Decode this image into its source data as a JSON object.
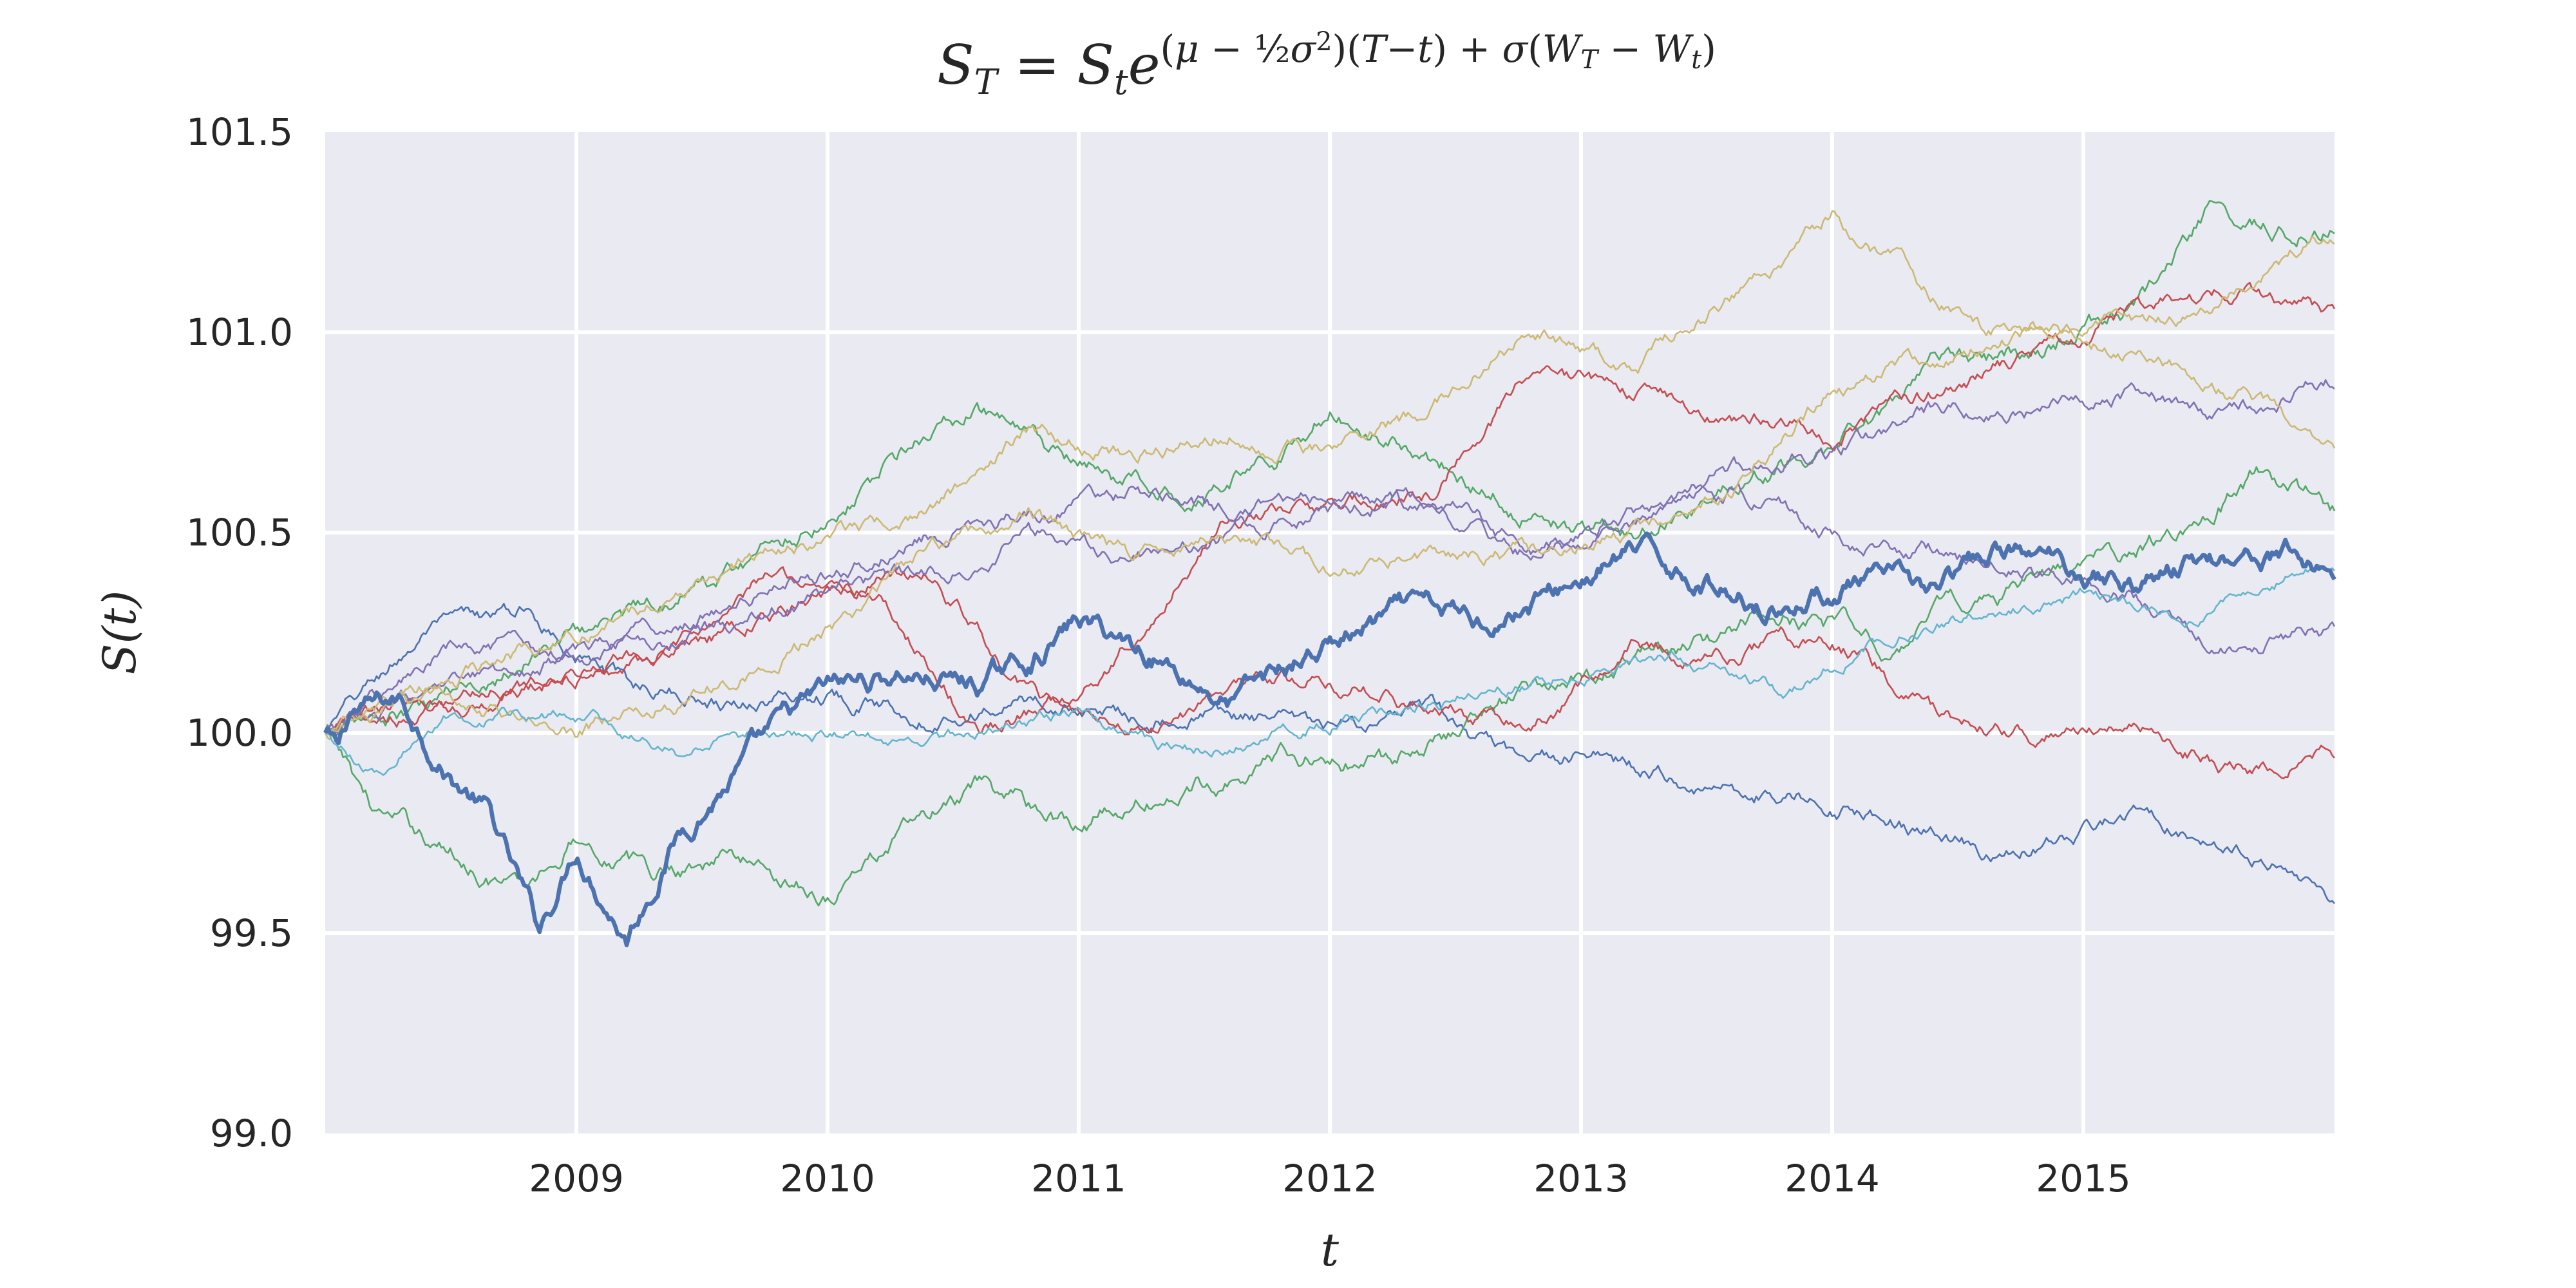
{
  "chart_data": {
    "type": "line",
    "title": "S_T = S_t e^{(μ − ½σ²)(T−t) + σ(W_T − W_t)}",
    "xlabel": "t",
    "ylabel": "S(t)",
    "x_range": [
      "2008-01-01",
      "2016-01-01"
    ],
    "xlim": [
      2008.0,
      2016.0
    ],
    "x_ticks": [
      "2009",
      "2010",
      "2011",
      "2012",
      "2013",
      "2014",
      "2015"
    ],
    "x_tick_values": [
      2009,
      2010,
      2011,
      2012,
      2013,
      2014,
      2015
    ],
    "ylim": [
      99.0,
      101.5
    ],
    "y_ticks": [
      "99.0",
      "99.5",
      "100.0",
      "100.5",
      "101.0",
      "101.5"
    ],
    "y_tick_values": [
      99.0,
      99.5,
      100.0,
      100.5,
      101.0,
      101.5
    ],
    "grid": true,
    "background": "#eaeaf2",
    "grid_color": "#ffffff",
    "highlight_series": 0,
    "series": [
      {
        "color": "#4c72b0",
        "width": "bold",
        "volatility": 0.035,
        "points": [
          [
            2008.0,
            100.0
          ],
          [
            2008.05,
            99.95
          ],
          [
            2008.1,
            100.05
          ],
          [
            2008.3,
            100.08
          ],
          [
            2008.5,
            99.9
          ],
          [
            2008.65,
            99.8
          ],
          [
            2008.85,
            99.5
          ],
          [
            2009.0,
            99.72
          ],
          [
            2009.2,
            99.5
          ],
          [
            2009.4,
            99.75
          ],
          [
            2009.6,
            99.88
          ],
          [
            2009.8,
            100.0
          ],
          [
            2010.0,
            100.1
          ],
          [
            2010.3,
            100.15
          ],
          [
            2010.6,
            100.12
          ],
          [
            2010.8,
            100.18
          ],
          [
            2011.0,
            100.28
          ],
          [
            2011.3,
            100.2
          ],
          [
            2011.6,
            100.08
          ],
          [
            2011.8,
            100.15
          ],
          [
            2012.0,
            100.22
          ],
          [
            2012.3,
            100.3
          ],
          [
            2012.6,
            100.28
          ],
          [
            2012.9,
            100.35
          ],
          [
            2013.2,
            100.45
          ],
          [
            2013.5,
            100.38
          ],
          [
            2013.8,
            100.32
          ],
          [
            2014.1,
            100.38
          ],
          [
            2014.4,
            100.35
          ],
          [
            2014.7,
            100.45
          ],
          [
            2014.9,
            100.42
          ],
          [
            2015.2,
            100.38
          ],
          [
            2015.5,
            100.44
          ],
          [
            2015.8,
            100.45
          ],
          [
            2016.0,
            100.4
          ]
        ]
      },
      {
        "color": "#4c72b0",
        "width": "thin",
        "volatility": 0.025,
        "points": [
          [
            2008.0,
            100.0
          ],
          [
            2008.4,
            100.25
          ],
          [
            2008.8,
            100.3
          ],
          [
            2009.2,
            100.12
          ],
          [
            2009.6,
            100.08
          ],
          [
            2010.0,
            100.1
          ],
          [
            2010.4,
            100.05
          ],
          [
            2010.8,
            100.08
          ],
          [
            2011.2,
            100.05
          ],
          [
            2011.6,
            100.05
          ],
          [
            2012.0,
            100.0
          ],
          [
            2012.4,
            100.05
          ],
          [
            2012.8,
            99.9
          ],
          [
            2013.0,
            99.95
          ],
          [
            2013.4,
            99.88
          ],
          [
            2013.8,
            99.85
          ],
          [
            2014.2,
            99.8
          ],
          [
            2014.6,
            99.7
          ],
          [
            2014.9,
            99.72
          ],
          [
            2015.2,
            99.8
          ],
          [
            2015.5,
            99.75
          ],
          [
            2015.8,
            99.65
          ],
          [
            2016.0,
            99.6
          ]
        ]
      },
      {
        "color": "#55a868",
        "width": "thin",
        "volatility": 0.03,
        "points": [
          [
            2008.0,
            100.0
          ],
          [
            2008.2,
            99.8
          ],
          [
            2008.5,
            99.7
          ],
          [
            2008.8,
            99.6
          ],
          [
            2009.0,
            99.75
          ],
          [
            2009.3,
            99.65
          ],
          [
            2009.6,
            99.7
          ],
          [
            2010.0,
            99.6
          ],
          [
            2010.3,
            99.75
          ],
          [
            2010.6,
            99.85
          ],
          [
            2011.0,
            99.78
          ],
          [
            2011.4,
            99.85
          ],
          [
            2011.8,
            99.95
          ],
          [
            2012.2,
            99.92
          ],
          [
            2012.6,
            100.05
          ],
          [
            2013.0,
            100.15
          ],
          [
            2013.4,
            100.2
          ],
          [
            2013.8,
            100.3
          ],
          [
            2014.2,
            100.22
          ],
          [
            2014.6,
            100.35
          ],
          [
            2015.0,
            100.4
          ],
          [
            2015.4,
            100.5
          ],
          [
            2015.7,
            100.65
          ],
          [
            2016.0,
            100.55
          ]
        ]
      },
      {
        "color": "#55a868",
        "width": "thin",
        "volatility": 0.03,
        "points": [
          [
            2008.0,
            100.0
          ],
          [
            2008.4,
            100.05
          ],
          [
            2008.8,
            100.2
          ],
          [
            2009.2,
            100.3
          ],
          [
            2009.6,
            100.4
          ],
          [
            2010.0,
            100.55
          ],
          [
            2010.4,
            100.75
          ],
          [
            2010.6,
            100.8
          ],
          [
            2011.0,
            100.65
          ],
          [
            2011.4,
            100.6
          ],
          [
            2011.8,
            100.7
          ],
          [
            2012.0,
            100.8
          ],
          [
            2012.4,
            100.7
          ],
          [
            2012.8,
            100.55
          ],
          [
            2013.2,
            100.5
          ],
          [
            2013.6,
            100.6
          ],
          [
            2014.0,
            100.7
          ],
          [
            2014.4,
            100.9
          ],
          [
            2014.8,
            100.95
          ],
          [
            2015.2,
            101.05
          ],
          [
            2015.5,
            101.3
          ],
          [
            2015.8,
            101.25
          ],
          [
            2016.0,
            101.28
          ]
        ]
      },
      {
        "color": "#c44e52",
        "width": "thin",
        "volatility": 0.025,
        "points": [
          [
            2008.0,
            100.0
          ],
          [
            2008.5,
            100.1
          ],
          [
            2009.0,
            100.15
          ],
          [
            2009.4,
            100.2
          ],
          [
            2009.8,
            100.4
          ],
          [
            2010.2,
            100.35
          ],
          [
            2010.6,
            100.0
          ],
          [
            2011.0,
            100.1
          ],
          [
            2011.3,
            100.3
          ],
          [
            2011.6,
            100.55
          ],
          [
            2012.0,
            100.55
          ],
          [
            2012.4,
            100.6
          ],
          [
            2012.8,
            100.9
          ],
          [
            2013.2,
            100.85
          ],
          [
            2013.6,
            100.8
          ],
          [
            2014.0,
            100.75
          ],
          [
            2014.4,
            100.85
          ],
          [
            2014.8,
            100.95
          ],
          [
            2015.2,
            101.05
          ],
          [
            2015.6,
            101.1
          ],
          [
            2016.0,
            101.05
          ]
        ]
      },
      {
        "color": "#c44e52",
        "width": "thin",
        "volatility": 0.025,
        "points": [
          [
            2008.0,
            100.0
          ],
          [
            2008.4,
            100.05
          ],
          [
            2008.8,
            100.1
          ],
          [
            2009.2,
            100.2
          ],
          [
            2009.6,
            100.25
          ],
          [
            2010.0,
            100.35
          ],
          [
            2010.4,
            100.4
          ],
          [
            2010.8,
            100.1
          ],
          [
            2011.2,
            100.0
          ],
          [
            2011.6,
            100.1
          ],
          [
            2012.0,
            100.15
          ],
          [
            2012.4,
            100.05
          ],
          [
            2012.8,
            100.0
          ],
          [
            2013.2,
            100.2
          ],
          [
            2013.6,
            100.2
          ],
          [
            2014.0,
            100.25
          ],
          [
            2014.4,
            100.05
          ],
          [
            2014.8,
            100.0
          ],
          [
            2015.2,
            100.05
          ],
          [
            2015.6,
            99.9
          ],
          [
            2016.0,
            99.95
          ]
        ]
      },
      {
        "color": "#8172b2",
        "width": "thin",
        "volatility": 0.025,
        "points": [
          [
            2008.0,
            100.0
          ],
          [
            2008.5,
            100.2
          ],
          [
            2009.0,
            100.2
          ],
          [
            2009.5,
            100.3
          ],
          [
            2010.0,
            100.4
          ],
          [
            2010.4,
            100.5
          ],
          [
            2010.8,
            100.55
          ],
          [
            2011.2,
            100.6
          ],
          [
            2011.6,
            100.55
          ],
          [
            2012.0,
            100.6
          ],
          [
            2012.4,
            100.55
          ],
          [
            2012.8,
            100.45
          ],
          [
            2013.2,
            100.5
          ],
          [
            2013.6,
            100.65
          ],
          [
            2014.0,
            100.7
          ],
          [
            2014.4,
            100.8
          ],
          [
            2014.8,
            100.8
          ],
          [
            2015.2,
            100.85
          ],
          [
            2015.6,
            100.8
          ],
          [
            2016.0,
            100.88
          ]
        ]
      },
      {
        "color": "#8172b2",
        "width": "thin",
        "volatility": 0.025,
        "points": [
          [
            2008.0,
            100.0
          ],
          [
            2008.5,
            100.1
          ],
          [
            2009.0,
            100.2
          ],
          [
            2009.5,
            100.25
          ],
          [
            2010.0,
            100.35
          ],
          [
            2010.4,
            100.4
          ],
          [
            2010.8,
            100.5
          ],
          [
            2011.2,
            100.45
          ],
          [
            2011.6,
            100.5
          ],
          [
            2012.0,
            100.55
          ],
          [
            2012.4,
            100.6
          ],
          [
            2012.8,
            100.45
          ],
          [
            2013.2,
            100.55
          ],
          [
            2013.6,
            100.6
          ],
          [
            2014.0,
            100.5
          ],
          [
            2014.4,
            100.45
          ],
          [
            2014.8,
            100.4
          ],
          [
            2015.2,
            100.35
          ],
          [
            2015.6,
            100.2
          ],
          [
            2016.0,
            100.25
          ]
        ]
      },
      {
        "color": "#ccb974",
        "width": "thin",
        "volatility": 0.025,
        "points": [
          [
            2008.0,
            100.0
          ],
          [
            2008.4,
            100.1
          ],
          [
            2008.8,
            100.2
          ],
          [
            2009.2,
            100.3
          ],
          [
            2009.6,
            100.4
          ],
          [
            2010.0,
            100.5
          ],
          [
            2010.4,
            100.55
          ],
          [
            2010.8,
            100.75
          ],
          [
            2011.2,
            100.7
          ],
          [
            2011.6,
            100.75
          ],
          [
            2012.0,
            100.7
          ],
          [
            2012.4,
            100.8
          ],
          [
            2012.8,
            101.0
          ],
          [
            2013.2,
            100.9
          ],
          [
            2013.6,
            101.1
          ],
          [
            2013.8,
            101.15
          ],
          [
            2014.0,
            101.3
          ],
          [
            2014.2,
            101.2
          ],
          [
            2014.6,
            101.0
          ],
          [
            2015.0,
            101.0
          ],
          [
            2015.4,
            101.05
          ],
          [
            2015.8,
            101.2
          ],
          [
            2016.0,
            101.25
          ]
        ]
      },
      {
        "color": "#ccb974",
        "width": "thin",
        "volatility": 0.025,
        "points": [
          [
            2008.0,
            100.0
          ],
          [
            2008.5,
            100.1
          ],
          [
            2009.0,
            100.0
          ],
          [
            2009.5,
            100.1
          ],
          [
            2010.0,
            100.25
          ],
          [
            2010.4,
            100.45
          ],
          [
            2010.8,
            100.55
          ],
          [
            2011.2,
            100.45
          ],
          [
            2011.6,
            100.5
          ],
          [
            2012.0,
            100.4
          ],
          [
            2012.4,
            100.45
          ],
          [
            2012.8,
            100.45
          ],
          [
            2013.2,
            100.5
          ],
          [
            2013.6,
            100.6
          ],
          [
            2014.0,
            100.85
          ],
          [
            2014.4,
            100.95
          ],
          [
            2014.8,
            101.0
          ],
          [
            2015.2,
            100.95
          ],
          [
            2015.6,
            100.85
          ],
          [
            2016.0,
            100.72
          ]
        ]
      },
      {
        "color": "#64b5cd",
        "width": "thin",
        "volatility": 0.02,
        "points": [
          [
            2008.0,
            100.0
          ],
          [
            2008.2,
            99.9
          ],
          [
            2008.5,
            100.05
          ],
          [
            2009.0,
            100.05
          ],
          [
            2009.4,
            99.95
          ],
          [
            2009.8,
            100.0
          ],
          [
            2010.2,
            99.98
          ],
          [
            2010.6,
            100.0
          ],
          [
            2011.0,
            100.05
          ],
          [
            2011.4,
            99.95
          ],
          [
            2011.8,
            100.0
          ],
          [
            2012.2,
            100.05
          ],
          [
            2012.6,
            100.1
          ],
          [
            2013.0,
            100.15
          ],
          [
            2013.4,
            100.2
          ],
          [
            2013.8,
            100.1
          ],
          [
            2014.2,
            100.25
          ],
          [
            2014.6,
            100.3
          ],
          [
            2015.0,
            100.35
          ],
          [
            2015.4,
            100.3
          ],
          [
            2015.8,
            100.4
          ],
          [
            2016.0,
            100.42
          ]
        ]
      }
    ]
  }
}
